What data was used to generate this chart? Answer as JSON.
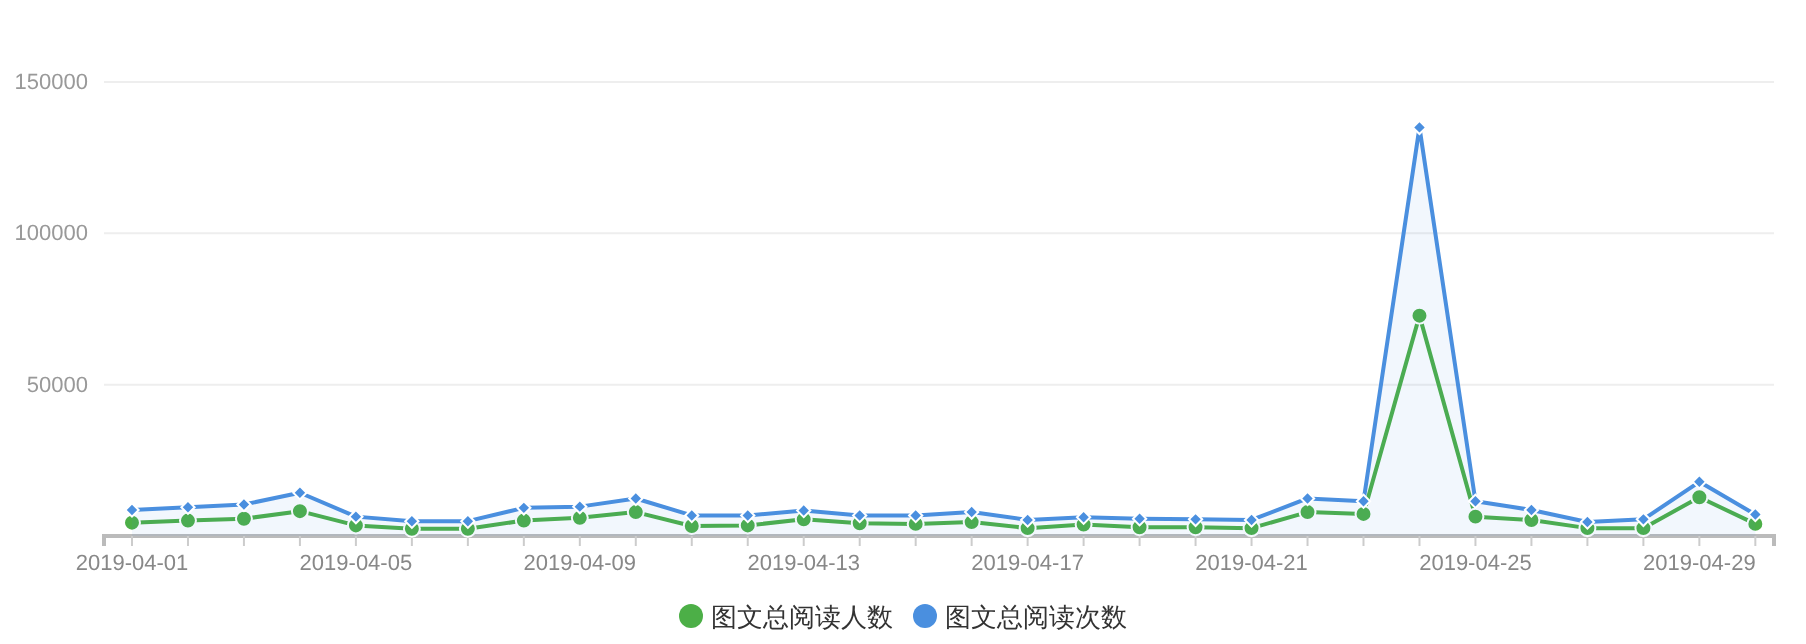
{
  "chart_data": {
    "type": "line",
    "x": [
      "2019-04-01",
      "2019-04-02",
      "2019-04-03",
      "2019-04-04",
      "2019-04-05",
      "2019-04-06",
      "2019-04-07",
      "2019-04-08",
      "2019-04-09",
      "2019-04-10",
      "2019-04-11",
      "2019-04-12",
      "2019-04-13",
      "2019-04-14",
      "2019-04-15",
      "2019-04-16",
      "2019-04-17",
      "2019-04-18",
      "2019-04-19",
      "2019-04-20",
      "2019-04-21",
      "2019-04-22",
      "2019-04-23",
      "2019-04-24",
      "2019-04-25",
      "2019-04-26",
      "2019-04-27",
      "2019-04-28",
      "2019-04-29",
      "2019-04-30"
    ],
    "series": [
      {
        "name": "图文总阅读人数",
        "marker": "circle",
        "color": "#4caf47",
        "values": [
          4400,
          5100,
          5700,
          8200,
          3500,
          2400,
          2400,
          5100,
          6000,
          7900,
          3300,
          3500,
          5500,
          4200,
          4000,
          4600,
          2600,
          3800,
          2900,
          2900,
          2600,
          7900,
          7300,
          72800,
          6400,
          5300,
          2600,
          2600,
          12800,
          4000
        ]
      },
      {
        "name": "图文总阅读次数",
        "type": "area",
        "marker": "diamond",
        "color": "#4a8fdf",
        "values": [
          8600,
          9500,
          10400,
          14300,
          6400,
          4900,
          4900,
          9300,
          9700,
          12400,
          6800,
          6800,
          8400,
          6800,
          6800,
          7900,
          5300,
          6200,
          5700,
          5500,
          5300,
          12400,
          11500,
          135000,
          11500,
          8600,
          4600,
          5500,
          17900,
          7100
        ]
      }
    ],
    "xlim": [
      "2019-03-31T12:00",
      "2019-04-30T08:00"
    ],
    "xticks": [
      {
        "value": "2019-04-01",
        "label": "2019-04-01"
      },
      {
        "value": "2019-04-02",
        "label": null
      },
      {
        "value": "2019-04-03",
        "label": null
      },
      {
        "value": "2019-04-04",
        "label": null
      },
      {
        "value": "2019-04-05",
        "label": "2019-04-05"
      },
      {
        "value": "2019-04-06",
        "label": null
      },
      {
        "value": "2019-04-07",
        "label": null
      },
      {
        "value": "2019-04-08",
        "label": null
      },
      {
        "value": "2019-04-09",
        "label": "2019-04-09"
      },
      {
        "value": "2019-04-10",
        "label": null
      },
      {
        "value": "2019-04-11",
        "label": null
      },
      {
        "value": "2019-04-12",
        "label": null
      },
      {
        "value": "2019-04-13",
        "label": "2019-04-13"
      },
      {
        "value": "2019-04-14",
        "label": null
      },
      {
        "value": "2019-04-15",
        "label": null
      },
      {
        "value": "2019-04-16",
        "label": null
      },
      {
        "value": "2019-04-17",
        "label": "2019-04-17"
      },
      {
        "value": "2019-04-18",
        "label": null
      },
      {
        "value": "2019-04-19",
        "label": null
      },
      {
        "value": "2019-04-20",
        "label": null
      },
      {
        "value": "2019-04-21",
        "label": "2019-04-21"
      },
      {
        "value": "2019-04-22",
        "label": null
      },
      {
        "value": "2019-04-23",
        "label": null
      },
      {
        "value": "2019-04-24",
        "label": null
      },
      {
        "value": "2019-04-25",
        "label": "2019-04-25"
      },
      {
        "value": "2019-04-26",
        "label": null
      },
      {
        "value": "2019-04-27",
        "label": null
      },
      {
        "value": "2019-04-28",
        "label": null
      },
      {
        "value": "2019-04-29",
        "label": "2019-04-29"
      },
      {
        "value": "2019-04-30",
        "label": null
      }
    ],
    "ylim": [
      0,
      150000
    ],
    "yticks": [
      {
        "value": 0,
        "label": null
      },
      50000,
      100000,
      150000
    ],
    "grid": "y",
    "legend": "bottom"
  }
}
